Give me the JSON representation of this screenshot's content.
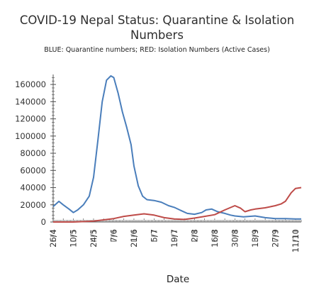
{
  "chart_data": {
    "type": "line",
    "title": "COVID-19 Nepal Status: Quarantine & Isolation Numbers",
    "subtitle": "BLUE: Quarantine numbers; RED: Isolation Numbers (Active Cases)",
    "xlabel": "Date",
    "ylabel": "",
    "ylim": [
      0,
      170000
    ],
    "yticks": [
      0,
      20000,
      40000,
      60000,
      80000,
      100000,
      120000,
      140000,
      160000
    ],
    "xtick_labels": [
      "26/4",
      "10/5",
      "24/5",
      "7/6",
      "21/6",
      "5/7",
      "19/7",
      "2/8",
      "16/8",
      "30/8",
      "13/9",
      "27/9",
      "11/10"
    ],
    "x_start": "26/4",
    "x_end": "15/10",
    "grid": false,
    "legend": "none",
    "colors": {
      "Quarantine": "#4a7ebb",
      "Isolation": "#be4b48"
    },
    "series": [
      {
        "name": "Quarantine",
        "points": [
          [
            "26/4",
            18000
          ],
          [
            "30/4",
            24000
          ],
          [
            "3/5",
            20000
          ],
          [
            "7/5",
            15000
          ],
          [
            "10/5",
            11000
          ],
          [
            "13/5",
            14000
          ],
          [
            "17/5",
            20000
          ],
          [
            "21/5",
            30000
          ],
          [
            "24/5",
            52000
          ],
          [
            "27/5",
            95000
          ],
          [
            "30/5",
            140000
          ],
          [
            "2/6",
            165000
          ],
          [
            "5/6",
            170000
          ],
          [
            "7/6",
            168000
          ],
          [
            "10/6",
            150000
          ],
          [
            "13/6",
            128000
          ],
          [
            "16/6",
            110000
          ],
          [
            "19/6",
            90000
          ],
          [
            "21/6",
            65000
          ],
          [
            "24/6",
            42000
          ],
          [
            "27/6",
            30000
          ],
          [
            "30/6",
            26000
          ],
          [
            "5/7",
            25000
          ],
          [
            "10/7",
            23000
          ],
          [
            "15/7",
            19000
          ],
          [
            "19/7",
            17000
          ],
          [
            "24/7",
            13000
          ],
          [
            "28/7",
            10000
          ],
          [
            "2/8",
            9000
          ],
          [
            "7/8",
            11000
          ],
          [
            "10/8",
            14000
          ],
          [
            "14/8",
            15000
          ],
          [
            "18/8",
            12000
          ],
          [
            "23/8",
            10000
          ],
          [
            "27/8",
            8000
          ],
          [
            "30/8",
            7000
          ],
          [
            "5/9",
            6000
          ],
          [
            "13/9",
            7000
          ],
          [
            "20/9",
            5000
          ],
          [
            "27/9",
            4000
          ],
          [
            "4/10",
            4000
          ],
          [
            "11/10",
            3500
          ],
          [
            "15/10",
            3500
          ]
        ]
      },
      {
        "name": "Isolation",
        "points": [
          [
            "26/4",
            0
          ],
          [
            "10/5",
            0
          ],
          [
            "24/5",
            1000
          ],
          [
            "7/6",
            4000
          ],
          [
            "14/6",
            6500
          ],
          [
            "21/6",
            8000
          ],
          [
            "28/6",
            9500
          ],
          [
            "5/7",
            8000
          ],
          [
            "12/7",
            5000
          ],
          [
            "19/7",
            3500
          ],
          [
            "26/7",
            3000
          ],
          [
            "2/8",
            4500
          ],
          [
            "9/8",
            6500
          ],
          [
            "16/8",
            8500
          ],
          [
            "23/8",
            14000
          ],
          [
            "30/8",
            19000
          ],
          [
            "3/9",
            16000
          ],
          [
            "6/9",
            12000
          ],
          [
            "10/9",
            14000
          ],
          [
            "13/9",
            15000
          ],
          [
            "20/9",
            16500
          ],
          [
            "27/9",
            19000
          ],
          [
            "1/10",
            21000
          ],
          [
            "4/10",
            24000
          ],
          [
            "8/10",
            34000
          ],
          [
            "11/10",
            39000
          ],
          [
            "15/10",
            40000
          ]
        ]
      }
    ]
  }
}
